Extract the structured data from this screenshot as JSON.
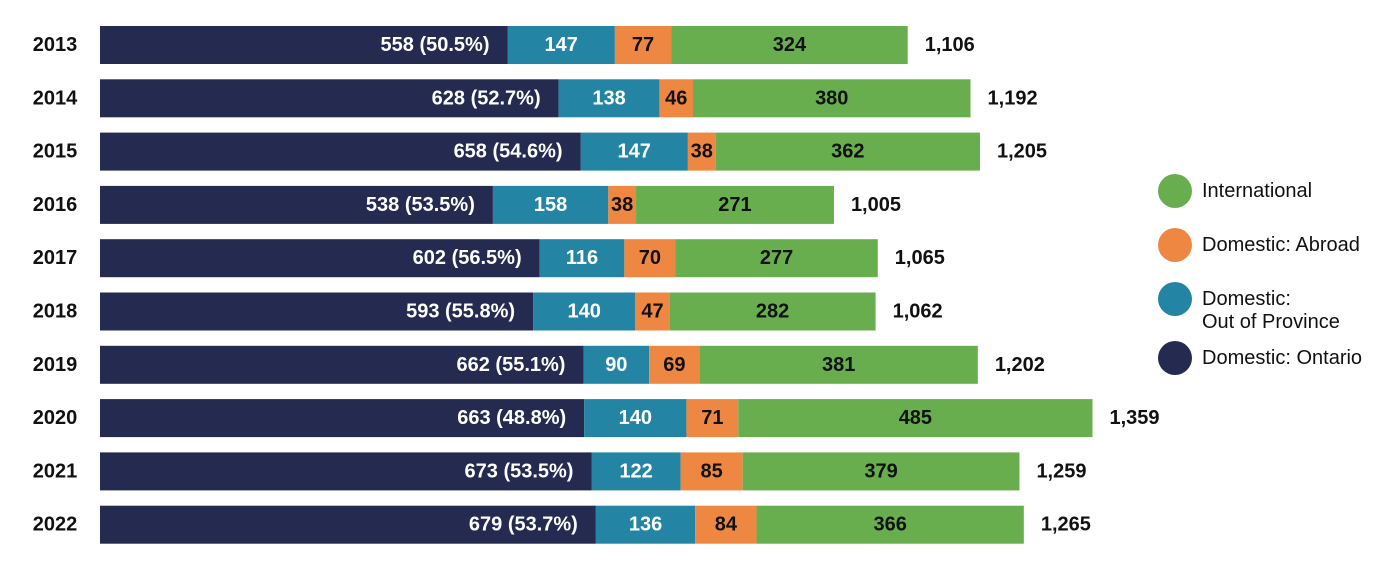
{
  "chart_data": {
    "type": "bar",
    "orientation": "horizontal",
    "stacked": true,
    "title": "",
    "xlabel": "",
    "ylabel": "",
    "categories": [
      "2013",
      "2014",
      "2015",
      "2016",
      "2017",
      "2018",
      "2019",
      "2020",
      "2021",
      "2022"
    ],
    "series": [
      {
        "name": "Domestic: Ontario",
        "color": "#252a51",
        "values": [
          558,
          628,
          658,
          538,
          602,
          593,
          662,
          663,
          673,
          679
        ],
        "labels": [
          "558 (50.5%)",
          "628 (52.7%)",
          "658 (54.6%)",
          "538 (53.5%)",
          "602 (56.5%)",
          "593 (55.8%)",
          "662 (55.1%)",
          "663 (48.8%)",
          "673 (53.5%)",
          "679 (53.7%)"
        ]
      },
      {
        "name": "Domestic: Out of Province",
        "color": "#2384a4",
        "values": [
          147,
          138,
          147,
          158,
          116,
          140,
          90,
          140,
          122,
          136
        ],
        "labels": [
          "147",
          "138",
          "147",
          "158",
          "116",
          "140",
          "90",
          "140",
          "122",
          "136"
        ]
      },
      {
        "name": "Domestic: Abroad",
        "color": "#ee8741",
        "values": [
          77,
          46,
          38,
          38,
          70,
          47,
          69,
          71,
          85,
          84
        ],
        "labels": [
          "77",
          "46",
          "38",
          "38",
          "70",
          "47",
          "69",
          "71",
          "85",
          "84"
        ]
      },
      {
        "name": "International",
        "color": "#68ae4f",
        "values": [
          324,
          380,
          362,
          271,
          277,
          282,
          381,
          485,
          379,
          366
        ],
        "labels": [
          "324",
          "380",
          "362",
          "271",
          "277",
          "282",
          "381",
          "485",
          "379",
          "366"
        ]
      }
    ],
    "totals": [
      "1,106",
      "1,192",
      "1,205",
      "1,005",
      "1,065",
      "1,062",
      "1,202",
      "1,359",
      "1,259",
      "1,265"
    ],
    "legend": {
      "placement": "right",
      "items": [
        {
          "name": "International",
          "color": "#68ae4f",
          "lines": [
            "International"
          ]
        },
        {
          "name": "Domestic: Abroad",
          "color": "#ee8741",
          "lines": [
            "Domestic: Abroad"
          ]
        },
        {
          "name": "Domestic: Out of Province",
          "color": "#2384a4",
          "lines": [
            "Domestic:",
            "Out of Province"
          ]
        },
        {
          "name": "Domestic: Ontario",
          "color": "#252a51",
          "lines": [
            "Domestic: Ontario"
          ]
        }
      ]
    },
    "grid": false
  }
}
